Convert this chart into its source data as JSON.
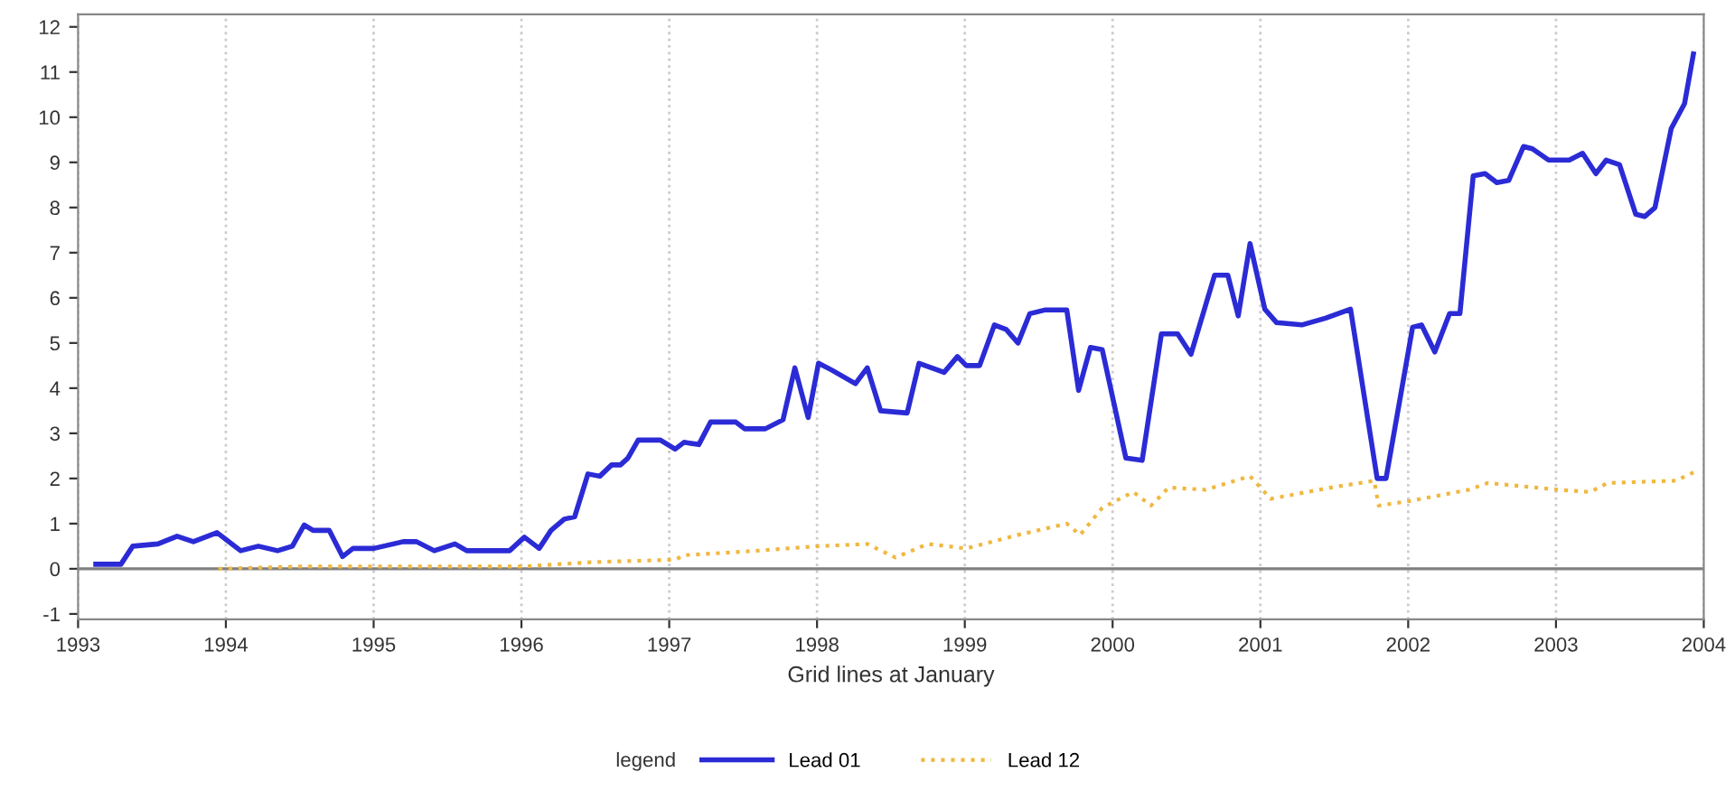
{
  "chart_data": {
    "type": "line",
    "xlabel": "Grid lines at January",
    "legend_title": "legend",
    "xlim": [
      1993,
      2004
    ],
    "xticks": [
      1993,
      1994,
      1995,
      1996,
      1997,
      1998,
      1999,
      2000,
      2001,
      2002,
      2003,
      2004
    ],
    "ylim": [
      -1.12,
      12.28
    ],
    "yticks": [
      -1,
      0,
      1,
      2,
      3,
      4,
      5,
      6,
      7,
      8,
      9,
      10,
      11,
      12
    ],
    "grid": "x",
    "legend": "bottom",
    "ref_lines": [
      {
        "axis": "y",
        "value": 0,
        "color": "#808080"
      }
    ],
    "series": [
      {
        "name": "Lead 01",
        "color": "#2b2bd6",
        "line_style": "solid",
        "x": [
          1993.12,
          1993.29,
          1993.37,
          1993.54,
          1993.67,
          1993.78,
          1993.94,
          1994.1,
          1994.22,
          1994.35,
          1994.45,
          1994.53,
          1994.59,
          1994.7,
          1994.79,
          1994.86,
          1995.0,
          1995.2,
          1995.29,
          1995.41,
          1995.55,
          1995.63,
          1995.92,
          1996.02,
          1996.12,
          1996.2,
          1996.29,
          1996.36,
          1996.45,
          1996.53,
          1996.61,
          1996.67,
          1996.72,
          1996.79,
          1996.94,
          1997.04,
          1997.1,
          1997.2,
          1997.28,
          1997.45,
          1997.51,
          1997.65,
          1997.77,
          1997.85,
          1997.94,
          1998.01,
          1998.1,
          1998.26,
          1998.34,
          1998.43,
          1998.61,
          1998.69,
          1998.86,
          1998.95,
          1999.01,
          1999.1,
          1999.2,
          1999.28,
          1999.36,
          1999.44,
          1999.54,
          1999.69,
          1999.77,
          1999.85,
          1999.93,
          2000.09,
          2000.2,
          2000.33,
          2000.44,
          2000.53,
          2000.69,
          2000.78,
          2000.85,
          2000.93,
          2001.03,
          2001.11,
          2001.28,
          2001.44,
          2001.61,
          2001.79,
          2001.85,
          2002.03,
          2002.09,
          2002.18,
          2002.28,
          2002.35,
          2002.44,
          2002.52,
          2002.6,
          2002.68,
          2002.78,
          2002.84,
          2002.95,
          2003.09,
          2003.18,
          2003.27,
          2003.34,
          2003.43,
          2003.54,
          2003.6,
          2003.67,
          2003.78,
          2003.87,
          2003.93
        ],
        "values": [
          0.1,
          0.1,
          0.5,
          0.55,
          0.72,
          0.6,
          0.8,
          0.4,
          0.5,
          0.4,
          0.5,
          0.97,
          0.85,
          0.85,
          0.27,
          0.45,
          0.45,
          0.6,
          0.6,
          0.4,
          0.55,
          0.4,
          0.4,
          0.7,
          0.45,
          0.85,
          1.1,
          1.15,
          2.1,
          2.05,
          2.3,
          2.3,
          2.45,
          2.85,
          2.85,
          2.65,
          2.8,
          2.75,
          3.25,
          3.25,
          3.1,
          3.1,
          3.3,
          4.45,
          3.35,
          4.55,
          4.4,
          4.1,
          4.45,
          3.5,
          3.45,
          4.55,
          4.35,
          4.7,
          4.5,
          4.5,
          5.4,
          5.3,
          5.0,
          5.65,
          5.73,
          5.73,
          3.95,
          4.9,
          4.85,
          2.45,
          2.4,
          5.2,
          5.2,
          4.75,
          6.5,
          6.5,
          5.6,
          7.2,
          5.75,
          5.45,
          5.4,
          5.55,
          5.75,
          2.0,
          2.0,
          5.35,
          5.4,
          4.8,
          5.65,
          5.65,
          8.7,
          8.75,
          8.55,
          8.6,
          9.35,
          9.3,
          9.05,
          9.05,
          9.2,
          8.75,
          9.05,
          8.95,
          7.85,
          7.8,
          8.0,
          9.75,
          10.3,
          11.4
        ]
      },
      {
        "name": "Lead 12",
        "color": "#f0b840",
        "line_style": "dotted",
        "x": [
          1993.95,
          1994.5,
          1995.0,
          1996.0,
          1996.5,
          1997.04,
          1997.1,
          1997.6,
          1997.8,
          1998.01,
          1998.34,
          1998.53,
          1998.75,
          1999.01,
          1999.36,
          1999.69,
          1999.78,
          1999.93,
          2000.14,
          2000.26,
          2000.38,
          2000.63,
          2000.93,
          2001.07,
          2001.48,
          2001.77,
          2001.8,
          2002.01,
          2002.41,
          2002.54,
          2003.02,
          2003.23,
          2003.35,
          2003.81,
          2003.94
        ],
        "values": [
          0.0,
          0.05,
          0.05,
          0.05,
          0.15,
          0.2,
          0.3,
          0.4,
          0.45,
          0.5,
          0.55,
          0.25,
          0.55,
          0.45,
          0.75,
          1.0,
          0.75,
          1.35,
          1.7,
          1.4,
          1.8,
          1.75,
          2.05,
          1.55,
          1.8,
          1.95,
          1.4,
          1.5,
          1.75,
          1.9,
          1.75,
          1.7,
          1.9,
          1.95,
          2.15
        ]
      }
    ]
  }
}
